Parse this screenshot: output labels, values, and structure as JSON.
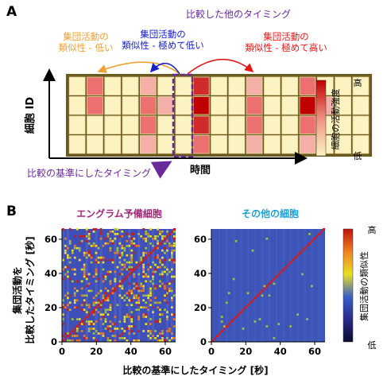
{
  "panel_a": {
    "label": "A",
    "top_label": "比較した他のタイミング",
    "callouts": [
      {
        "line1": "集団活動の",
        "line2": "類似性 - 低い",
        "color": "#f0a030"
      },
      {
        "line1": "集団活動の",
        "line2": "類似性 - 極めて低い",
        "color": "#1520c8"
      },
      {
        "line1": "集団活動の",
        "line2": "類似性 - 極めて高い",
        "color": "#e01818"
      }
    ],
    "y_axis_label": "細胞 ID",
    "x_axis_label": "時間",
    "reference_label": "比較の基準にしたタイミング",
    "colorbar": {
      "high": "高",
      "low": "低",
      "title": "細胞の活動強度"
    },
    "grid_levels": [
      [
        0,
        2,
        0,
        0,
        1,
        0,
        0,
        3,
        0,
        0,
        1,
        0,
        0,
        2,
        0,
        0,
        0
      ],
      [
        0,
        2,
        0,
        0,
        2,
        1,
        0,
        4,
        0,
        0,
        2,
        0,
        0,
        4,
        1,
        0,
        0
      ],
      [
        0,
        0,
        0,
        0,
        2,
        0,
        0,
        3,
        0,
        0,
        2,
        0,
        0,
        2,
        0,
        0,
        0
      ],
      [
        0,
        0,
        0,
        0,
        1,
        0,
        0,
        2,
        0,
        0,
        1,
        0,
        0,
        1,
        0,
        0,
        0
      ]
    ],
    "level_colors": [
      "#fbf3c2",
      "#f4b0a8",
      "#ec7070",
      "#d22b2b",
      "#c00000"
    ],
    "highlight_column": 7
  },
  "panel_b": {
    "label": "B",
    "y_axis_label_line1": "集団活動を",
    "y_axis_label_line2": "比較したタイミング [秒]",
    "x_axis_label": "比較の基準にしたタイミング [秒]",
    "colorbar": {
      "high": "高",
      "low": "低",
      "title": "集団活動の類似性"
    },
    "y_ticks": [
      "0",
      "20",
      "40",
      "60"
    ],
    "x_ticks": [
      "0",
      "20",
      "40",
      "60"
    ],
    "heatmaps": [
      {
        "title": "エングラム予備細胞",
        "title_color": "#a0287a",
        "density": "high"
      },
      {
        "title": "その他の細胞",
        "title_color": "#1ba0d8",
        "density": "low"
      }
    ]
  }
}
